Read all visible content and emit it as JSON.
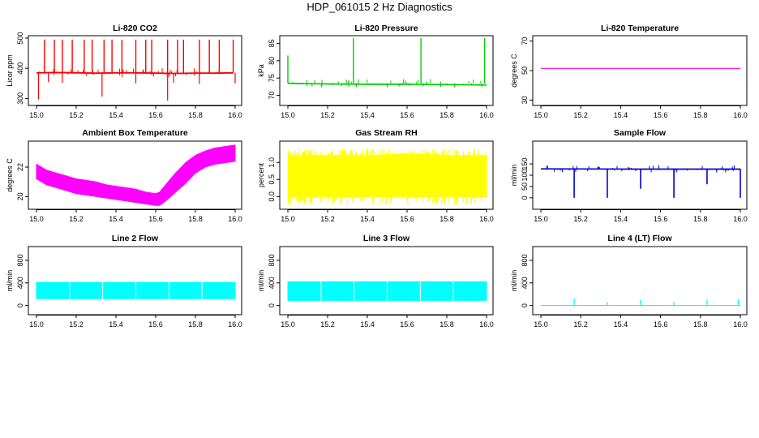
{
  "title": "HDP_061015 2 Hz Diagnostics",
  "colors": {
    "axes": "#000000"
  },
  "chart_data": [
    {
      "id": "co2",
      "type": "line",
      "title": "Li-820 CO2",
      "ylabel": "Licor ppm",
      "color": "#ff0000",
      "xlim": [
        15.0,
        16.0
      ],
      "xticks": [
        "15.0",
        "15.2",
        "15.4",
        "15.6",
        "15.8",
        "16.0"
      ],
      "ylim": [
        285,
        500
      ],
      "yticks": [
        {
          "v": 300,
          "label": "300"
        },
        {
          "v": 400,
          "label": "400"
        },
        {
          "v": 500,
          "label": "500"
        }
      ],
      "series": [
        {
          "kind": "line",
          "points": [
            [
              15.0,
              385
            ],
            [
              15.1,
              386
            ],
            [
              15.2,
              385
            ],
            [
              15.3,
              384
            ],
            [
              15.4,
              385
            ],
            [
              15.5,
              385
            ],
            [
              15.6,
              384
            ],
            [
              15.7,
              383
            ],
            [
              15.8,
              384
            ],
            [
              15.9,
              384
            ],
            [
              15.99,
              385
            ]
          ],
          "band": 5,
          "spikes_up": [
            [
              15.04,
              495
            ],
            [
              15.09,
              495
            ],
            [
              15.13,
              495
            ],
            [
              15.18,
              495
            ],
            [
              15.24,
              495
            ],
            [
              15.28,
              495
            ],
            [
              15.34,
              495
            ],
            [
              15.38,
              495
            ],
            [
              15.43,
              495
            ],
            [
              15.5,
              495
            ],
            [
              15.55,
              495
            ],
            [
              15.58,
              495
            ],
            [
              15.66,
              495
            ],
            [
              15.71,
              495
            ],
            [
              15.74,
              495
            ],
            [
              15.82,
              495
            ],
            [
              15.87,
              495
            ],
            [
              15.92,
              495
            ],
            [
              15.99,
              495
            ]
          ],
          "spikes_down": [
            [
              15.01,
              297
            ],
            [
              15.06,
              355
            ],
            [
              15.13,
              352
            ],
            [
              15.33,
              306
            ],
            [
              15.5,
              350
            ],
            [
              15.66,
              293
            ],
            [
              15.69,
              352
            ],
            [
              15.82,
              348
            ],
            [
              16.0,
              350
            ]
          ]
        }
      ]
    },
    {
      "id": "pressure",
      "type": "line",
      "title": "Li-820 Pressure",
      "ylabel": "kPa",
      "color": "#00cc00",
      "xlim": [
        15.0,
        16.0
      ],
      "xticks": [
        "15.0",
        "15.2",
        "15.4",
        "15.6",
        "15.8",
        "16.0"
      ],
      "ylim": [
        67.8,
        86.5
      ],
      "yticks": [
        {
          "v": 70,
          "label": "70"
        },
        {
          "v": 75,
          "label": "75"
        },
        {
          "v": 80,
          "label": "80"
        },
        {
          "v": 85,
          "label": "85"
        }
      ],
      "series": [
        {
          "kind": "line",
          "points": [
            [
              15.0,
              73.5
            ],
            [
              15.05,
              73.4
            ],
            [
              15.2,
              73.3
            ],
            [
              15.4,
              73.2
            ],
            [
              15.6,
              73.2
            ],
            [
              15.8,
              73.1
            ],
            [
              16.0,
              73.0
            ]
          ],
          "band": 0.4,
          "spikes_up": [
            [
              15.0,
              81.5
            ],
            [
              15.33,
              86.5
            ],
            [
              15.67,
              86.5
            ],
            [
              15.99,
              86.5
            ]
          ],
          "spikes_down": [
            [
              15.17,
              72.3
            ],
            [
              15.5,
              72.3
            ],
            [
              15.84,
              72.3
            ]
          ]
        }
      ]
    },
    {
      "id": "licor-temp",
      "type": "line",
      "title": "Li-820 Temperature",
      "ylabel": "degrees C",
      "color": "#ff00ff",
      "xlim": [
        15.0,
        16.0
      ],
      "xticks": [
        "15.0",
        "15.2",
        "15.4",
        "15.6",
        "15.8",
        "16.0"
      ],
      "ylim": [
        28,
        72
      ],
      "yticks": [
        {
          "v": 30,
          "label": "30"
        },
        {
          "v": 50,
          "label": "50"
        },
        {
          "v": 70,
          "label": "70"
        }
      ],
      "series": [
        {
          "kind": "line",
          "points": [
            [
              15.0,
              51.5
            ],
            [
              16.0,
              51.5
            ]
          ],
          "band": 0
        }
      ]
    },
    {
      "id": "box-temp",
      "type": "area",
      "title": "Ambient Box Temperature",
      "ylabel": "degrees C",
      "color": "#ff00ff",
      "xlim": [
        15.0,
        16.0
      ],
      "xticks": [
        "15.0",
        "15.2",
        "15.4",
        "15.6",
        "15.8",
        "16.0"
      ],
      "ylim": [
        19.3,
        23.6
      ],
      "yticks": [
        {
          "v": 20,
          "label": "20"
        },
        {
          "v": 22,
          "label": "22"
        }
      ],
      "series": [
        {
          "kind": "band",
          "x": [
            15.0,
            15.05,
            15.1,
            15.15,
            15.2,
            15.25,
            15.3,
            15.35,
            15.4,
            15.45,
            15.5,
            15.55,
            15.6,
            15.62,
            15.65,
            15.7,
            15.75,
            15.8,
            15.85,
            15.9,
            15.95,
            16.0
          ],
          "low": [
            21.2,
            20.8,
            20.6,
            20.4,
            20.2,
            20.1,
            20.0,
            19.9,
            19.8,
            19.7,
            19.6,
            19.5,
            19.4,
            19.4,
            19.7,
            20.3,
            20.9,
            21.6,
            22.0,
            22.2,
            22.3,
            22.4
          ],
          "high": [
            22.2,
            21.8,
            21.6,
            21.4,
            21.2,
            21.1,
            21.0,
            20.8,
            20.7,
            20.6,
            20.5,
            20.3,
            20.2,
            20.3,
            20.8,
            21.6,
            22.3,
            22.8,
            23.1,
            23.3,
            23.4,
            23.5
          ]
        }
      ]
    },
    {
      "id": "rh",
      "type": "area",
      "title": "Gas Stream RH",
      "ylabel": "percent",
      "color": "#ffff00",
      "xlim": [
        15.0,
        16.0
      ],
      "xticks": [
        "15.0",
        "15.2",
        "15.4",
        "15.6",
        "15.8",
        "16.0"
      ],
      "ylim": [
        -0.3,
        1.55
      ],
      "yticks": [
        {
          "v": 0.0,
          "label": "0.0"
        },
        {
          "v": 0.5,
          "label": "0.5"
        },
        {
          "v": 1.0,
          "label": "1.0"
        }
      ],
      "series": [
        {
          "kind": "band",
          "x": [
            15.0,
            15.2,
            15.4,
            15.6,
            15.8,
            16.0
          ],
          "low": [
            0.0,
            0.0,
            0.0,
            0.0,
            0.0,
            0.0
          ],
          "high": [
            1.2,
            1.2,
            1.2,
            1.25,
            1.2,
            1.2
          ],
          "noise_low": -0.25,
          "noise_high": 1.4
        }
      ]
    },
    {
      "id": "sample-flow",
      "type": "line",
      "title": "Sample Flow",
      "ylabel": "ml/min",
      "color": "#0000cc",
      "xlim": [
        15.0,
        16.0
      ],
      "xticks": [
        "15.0",
        "15.2",
        "15.4",
        "15.6",
        "15.8",
        "16.0"
      ],
      "ylim": [
        -40,
        240
      ],
      "yticks": [
        {
          "v": 0,
          "label": "0"
        },
        {
          "v": 50,
          "label": "50"
        },
        {
          "v": 100,
          "label": "100"
        },
        {
          "v": 150,
          "label": "150"
        }
      ],
      "series": [
        {
          "kind": "line",
          "points": [
            [
              15.0,
              128
            ],
            [
              15.5,
              127
            ],
            [
              16.0,
              127
            ]
          ],
          "band": 6,
          "dips": [
            [
              15.167,
              0
            ],
            [
              15.333,
              0
            ],
            [
              15.5,
              40
            ],
            [
              15.667,
              0
            ],
            [
              15.833,
              60
            ],
            [
              16.0,
              0
            ]
          ]
        }
      ]
    },
    {
      "id": "line2-flow",
      "type": "area",
      "title": "Line 2 Flow",
      "ylabel": "ml/min",
      "color": "#00ffff",
      "xlim": [
        15.0,
        16.0
      ],
      "xticks": [
        "15.0",
        "15.2",
        "15.4",
        "15.6",
        "15.8",
        "16.0"
      ],
      "ylim": [
        -120,
        1000
      ],
      "yticks": [
        {
          "v": 0,
          "label": "0"
        },
        {
          "v": 400,
          "label": "400"
        },
        {
          "v": 800,
          "label": "800"
        }
      ],
      "series": [
        {
          "kind": "band",
          "x": [
            15.0,
            16.0
          ],
          "low": [
            120,
            120
          ],
          "high": [
            410,
            410
          ],
          "gaps": [
            15.167,
            15.333,
            15.5,
            15.667,
            15.833
          ]
        }
      ]
    },
    {
      "id": "line3-flow",
      "type": "area",
      "title": "Line 3 Flow",
      "ylabel": "ml/min",
      "color": "#00ffff",
      "xlim": [
        15.0,
        16.0
      ],
      "xticks": [
        "15.0",
        "15.2",
        "15.4",
        "15.6",
        "15.8",
        "16.0"
      ],
      "ylim": [
        -120,
        1000
      ],
      "yticks": [
        {
          "v": 0,
          "label": "0"
        },
        {
          "v": 400,
          "label": "400"
        },
        {
          "v": 800,
          "label": "800"
        }
      ],
      "series": [
        {
          "kind": "band",
          "x": [
            15.0,
            16.0
          ],
          "low": [
            90,
            90
          ],
          "high": [
            420,
            420
          ],
          "gaps": [
            15.167,
            15.333,
            15.5,
            15.667,
            15.833
          ]
        }
      ]
    },
    {
      "id": "line4-flow",
      "type": "line",
      "title": "Line 4 (LT) Flow",
      "ylabel": "ml/min",
      "color": "#00ffff",
      "xlim": [
        15.0,
        16.0
      ],
      "xticks": [
        "15.0",
        "15.2",
        "15.4",
        "15.6",
        "15.8",
        "16.0"
      ],
      "ylim": [
        -120,
        1000
      ],
      "yticks": [
        {
          "v": 0,
          "label": "0"
        },
        {
          "v": 400,
          "label": "400"
        },
        {
          "v": 800,
          "label": "800"
        }
      ],
      "series": [
        {
          "kind": "line",
          "points": [
            [
              15.0,
              0
            ],
            [
              16.0,
              0
            ]
          ],
          "band": 0,
          "spikes_up": [
            [
              15.167,
              120
            ],
            [
              15.333,
              60
            ],
            [
              15.5,
              100
            ],
            [
              15.667,
              60
            ],
            [
              15.833,
              100
            ],
            [
              15.99,
              110
            ]
          ]
        }
      ]
    }
  ]
}
